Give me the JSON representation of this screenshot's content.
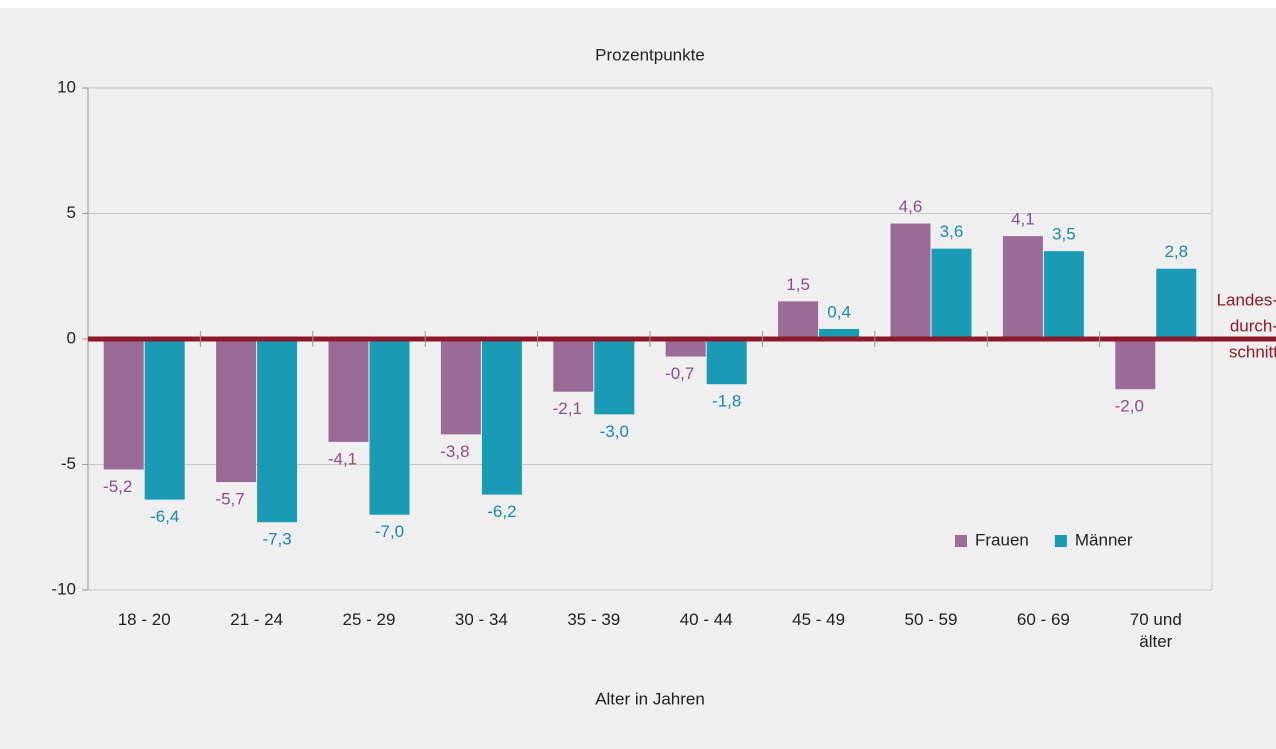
{
  "chart_data": {
    "type": "bar",
    "y_axis_title": "Prozentpunkte",
    "x_axis_title": "Alter in Jahren",
    "categories": [
      "18 - 20",
      "21 - 24",
      "25 - 29",
      "30 - 34",
      "35 - 39",
      "40 - 44",
      "45 - 49",
      "50 - 59",
      "60 - 69",
      "70 und älter"
    ],
    "series": [
      {
        "name": "Frauen",
        "color": "#9b6b98",
        "label_color": "#8b4f86",
        "values": [
          -5.2,
          -5.7,
          -4.1,
          -3.8,
          -2.1,
          -0.7,
          1.5,
          4.6,
          4.1,
          -2.0
        ],
        "value_labels": [
          "-5,2",
          "-5,7",
          "-4,1",
          "-3,8",
          "-2,1",
          "-0,7",
          "1,5",
          "4,6",
          "4,1",
          "-2,0"
        ]
      },
      {
        "name": "Männer",
        "color": "#1a9bb5",
        "label_color": "#1a8aa8",
        "values": [
          -6.4,
          -7.3,
          -7.0,
          -6.2,
          -3.0,
          -1.8,
          0.4,
          3.6,
          3.5,
          2.8
        ],
        "value_labels": [
          "-6,4",
          "-7,3",
          "-7,0",
          "-6,2",
          "-3,0",
          "-1,8",
          "0,4",
          "3,6",
          "3,5",
          "2,8"
        ]
      }
    ],
    "reference_line": {
      "value": 0,
      "color": "#8b1a2b",
      "label_lines": [
        "Landes-",
        "durch-",
        "schnitt"
      ]
    },
    "ylim": [
      -10,
      10
    ],
    "yticks": [
      -10,
      -5,
      0,
      5,
      10
    ],
    "grid": true,
    "legend": "lower right"
  }
}
